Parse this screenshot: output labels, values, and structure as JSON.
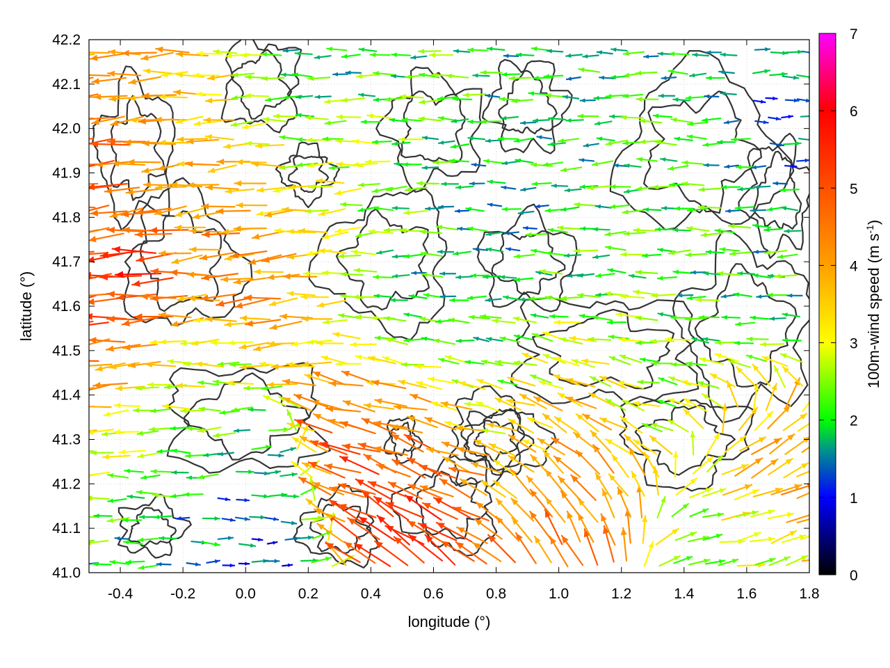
{
  "chart_data": {
    "type": "vector-field",
    "xlabel": "longitude (°)",
    "ylabel": "latitude (°)",
    "colorbar_label": "100m-wind speed (m s-1)",
    "colorbar_label_parts": {
      "main": "100m-wind speed (m s",
      "sup": "-1",
      "end": ")"
    },
    "xlim": [
      -0.5,
      1.8
    ],
    "ylim": [
      41.0,
      42.2
    ],
    "xticks": [
      -0.4,
      -0.2,
      0.0,
      0.2,
      0.4,
      0.6,
      0.8,
      1.0,
      1.2,
      1.4,
      1.6,
      1.8
    ],
    "xtick_labels": [
      "-0.4",
      "-0.2",
      "0.0",
      "0.2",
      "0.4",
      "0.6",
      "0.8",
      "1.0",
      "1.2",
      "1.4",
      "1.6",
      "1.8"
    ],
    "yticks": [
      41.0,
      41.1,
      41.2,
      41.3,
      41.4,
      41.5,
      41.6,
      41.7,
      41.8,
      41.9,
      42.0,
      42.1,
      42.2
    ],
    "ytick_labels": [
      "41.0",
      "41.1",
      "41.2",
      "41.3",
      "41.4",
      "41.5",
      "41.6",
      "41.7",
      "41.8",
      "41.9",
      "42.0",
      "42.1",
      "42.2"
    ],
    "colorbar_range": [
      0,
      7
    ],
    "colorbar_ticks": [
      0,
      1,
      2,
      3,
      4,
      5,
      6,
      7
    ],
    "colorbar_tick_labels": [
      "0",
      "1",
      "2",
      "3",
      "4",
      "5",
      "6",
      "7"
    ],
    "colormap": [
      {
        "value": 0,
        "color": "#000000"
      },
      {
        "value": 1,
        "color": "#0000ff"
      },
      {
        "value": 1.6,
        "color": "#009090"
      },
      {
        "value": 2,
        "color": "#00ff00"
      },
      {
        "value": 3,
        "color": "#ffff00"
      },
      {
        "value": 4,
        "color": "#ffa000"
      },
      {
        "value": 5,
        "color": "#ff5000"
      },
      {
        "value": 6,
        "color": "#ff0000"
      },
      {
        "value": 7,
        "color": "#ff00ff"
      }
    ],
    "contour_color": "#333333",
    "grid": true,
    "regions": [
      {
        "lon": -0.5,
        "lat": 41.9,
        "r": 0.35,
        "speed": 5.0,
        "dir": 188
      },
      {
        "lon": -0.45,
        "lat": 41.55,
        "r": 0.3,
        "speed": 5.5,
        "dir": 190
      },
      {
        "lon": -0.3,
        "lat": 41.66,
        "r": 0.1,
        "speed": 6.8,
        "dir": 170
      },
      {
        "lon": -0.2,
        "lat": 42.1,
        "r": 0.35,
        "speed": 3.5,
        "dir": 182
      },
      {
        "lon": 0.1,
        "lat": 41.8,
        "r": 0.3,
        "speed": 4.5,
        "dir": 185
      },
      {
        "lon": 0.4,
        "lat": 41.85,
        "r": 0.25,
        "speed": 3.0,
        "dir": 185
      },
      {
        "lon": 0.2,
        "lat": 42.05,
        "r": 0.25,
        "speed": 1.4,
        "dir": 180
      },
      {
        "lon": 0.65,
        "lat": 42.0,
        "r": 0.3,
        "speed": 2.2,
        "dir": 180
      },
      {
        "lon": 0.95,
        "lat": 42.1,
        "r": 0.25,
        "speed": 1.9,
        "dir": 180
      },
      {
        "lon": 1.4,
        "lat": 42.1,
        "r": 0.3,
        "speed": 2.0,
        "dir": 180
      },
      {
        "lon": 1.7,
        "lat": 42.05,
        "r": 0.2,
        "speed": 1.3,
        "dir": 0
      },
      {
        "lon": 0.8,
        "lat": 41.6,
        "r": 0.35,
        "speed": 1.2,
        "dir": 180
      },
      {
        "lon": 0.5,
        "lat": 41.7,
        "r": 0.25,
        "speed": 2.0,
        "dir": 180
      },
      {
        "lon": 1.2,
        "lat": 41.75,
        "r": 0.3,
        "speed": 2.2,
        "dir": 182
      },
      {
        "lon": 1.6,
        "lat": 41.7,
        "r": 0.3,
        "speed": 2.0,
        "dir": 180
      },
      {
        "lon": 1.0,
        "lat": 41.45,
        "r": 0.25,
        "speed": 3.8,
        "dir": 160
      },
      {
        "lon": 1.4,
        "lat": 41.4,
        "r": 0.25,
        "speed": 2.5,
        "dir": 170
      },
      {
        "lon": 0.6,
        "lat": 41.3,
        "r": 0.25,
        "speed": 4.8,
        "dir": 160
      },
      {
        "lon": 0.35,
        "lat": 41.25,
        "r": 0.2,
        "speed": 5.2,
        "dir": 165
      },
      {
        "lon": 0.55,
        "lat": 41.08,
        "r": 0.2,
        "speed": 5.5,
        "dir": 140
      },
      {
        "lon": 1.1,
        "lat": 41.15,
        "r": 0.25,
        "speed": 4.5,
        "dir": 120
      },
      {
        "lon": 1.6,
        "lat": 41.2,
        "r": 0.25,
        "speed": 4.5,
        "dir": 30
      },
      {
        "lon": 1.5,
        "lat": 41.05,
        "r": 0.25,
        "speed": 1.8,
        "dir": 0
      },
      {
        "lon": -0.3,
        "lat": 41.25,
        "r": 0.3,
        "speed": 2.0,
        "dir": 180
      },
      {
        "lon": 0.0,
        "lat": 41.1,
        "r": 0.3,
        "speed": 1.0,
        "dir": 0
      },
      {
        "lon": -0.2,
        "lat": 41.4,
        "r": 0.25,
        "speed": 3.0,
        "dir": 180
      }
    ]
  }
}
